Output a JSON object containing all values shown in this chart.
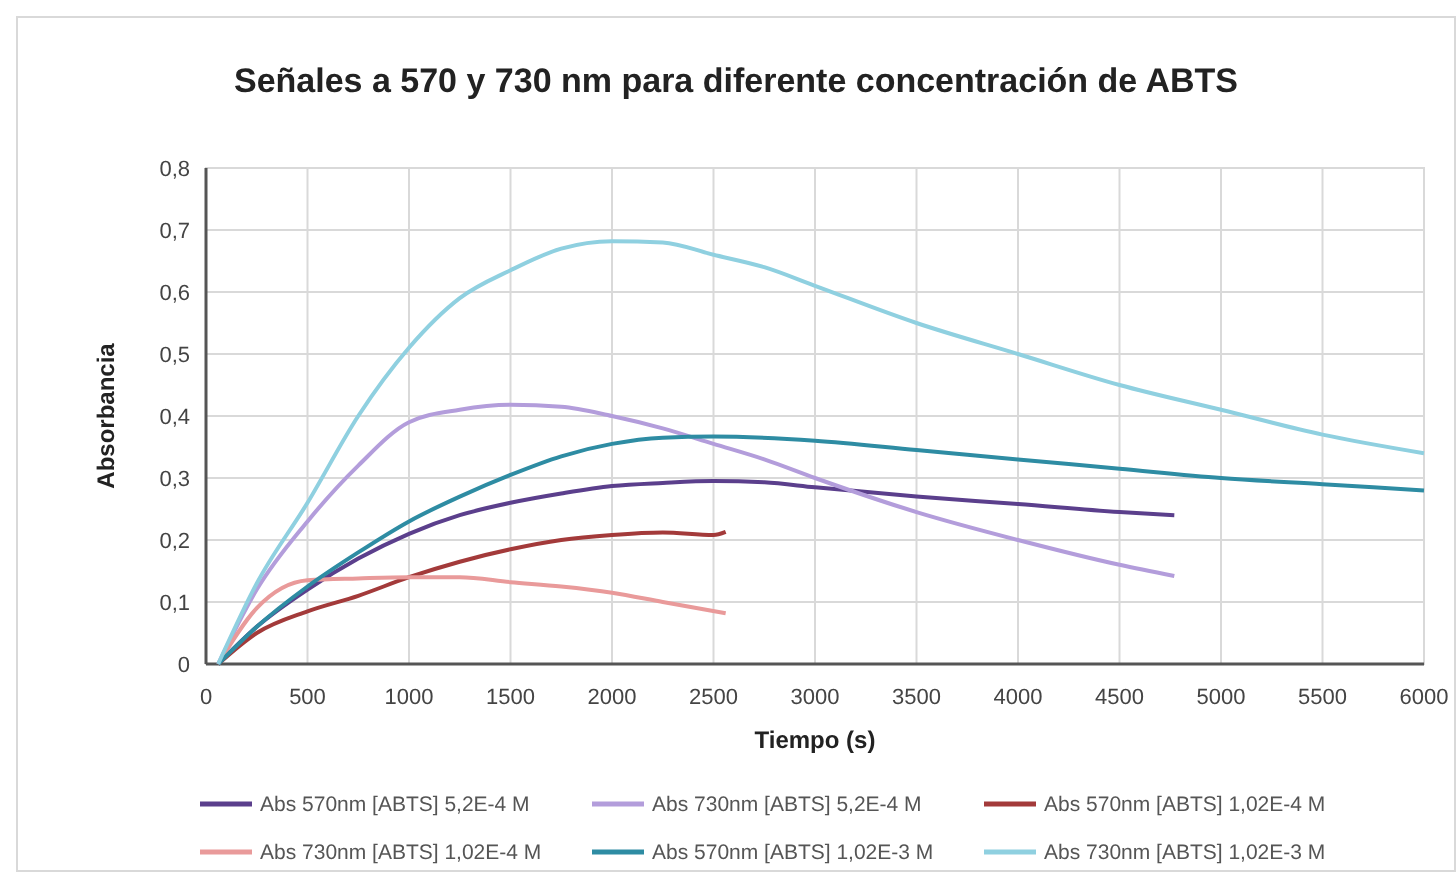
{
  "chart_data": {
    "type": "line",
    "title": "Señales  a 570 y 730 nm para diferente concentración de ABTS",
    "xlabel": "Tiempo (s)",
    "ylabel": "Absorbancia",
    "xlim": [
      0,
      6000
    ],
    "xticks": [
      0,
      500,
      1000,
      1500,
      2000,
      2500,
      3000,
      3500,
      4000,
      4500,
      5000,
      5500,
      6000
    ],
    "ylim": [
      0,
      0.8
    ],
    "yticks": [
      {
        "value": 0,
        "label": "0"
      },
      {
        "value": 0.1,
        "label": "0,1"
      },
      {
        "value": 0.2,
        "label": "0,2"
      },
      {
        "value": 0.3,
        "label": "0,3"
      },
      {
        "value": 0.4,
        "label": "0,4"
      },
      {
        "value": 0.5,
        "label": "0,5"
      },
      {
        "value": 0.6,
        "label": "0,6"
      },
      {
        "value": 0.7,
        "label": "0,7"
      },
      {
        "value": 0.8,
        "label": "0,8"
      }
    ],
    "grid": true,
    "legend": "bottom",
    "marker": "none",
    "line_style": "solid",
    "series": [
      {
        "name": "Abs 570nm [ABTS] 5,2E-4 M",
        "color": "#5b3f8c",
        "x": [
          60,
          250,
          500,
          750,
          1000,
          1250,
          1500,
          1750,
          2000,
          2250,
          2500,
          2750,
          3000,
          3500,
          4000,
          4500,
          4770
        ],
        "values": [
          0,
          0.06,
          0.12,
          0.17,
          0.21,
          0.24,
          0.26,
          0.275,
          0.287,
          0.292,
          0.295,
          0.293,
          0.285,
          0.27,
          0.258,
          0.245,
          0.24
        ]
      },
      {
        "name": "Abs 730nm [ABTS] 5,2E-4 M",
        "color": "#b39ddb",
        "x": [
          60,
          250,
          500,
          750,
          1000,
          1250,
          1500,
          1750,
          2000,
          2250,
          2500,
          2750,
          3000,
          3500,
          4000,
          4500,
          4770
        ],
        "values": [
          0,
          0.12,
          0.23,
          0.32,
          0.39,
          0.41,
          0.418,
          0.415,
          0.4,
          0.38,
          0.355,
          0.33,
          0.3,
          0.245,
          0.2,
          0.16,
          0.142
        ]
      },
      {
        "name": "Abs 570nm [ABTS] 1,02E-4 M",
        "color": "#a33a3a",
        "x": [
          60,
          250,
          500,
          750,
          1000,
          1250,
          1500,
          1750,
          2000,
          2250,
          2500,
          2560
        ],
        "values": [
          0,
          0.05,
          0.085,
          0.11,
          0.14,
          0.165,
          0.185,
          0.2,
          0.208,
          0.212,
          0.208,
          0.213
        ]
      },
      {
        "name": "Abs 730nm [ABTS] 1,02E-4 M",
        "color": "#e99a9a",
        "x": [
          60,
          250,
          500,
          750,
          1000,
          1250,
          1500,
          1750,
          2000,
          2250,
          2560
        ],
        "values": [
          0,
          0.09,
          0.135,
          0.138,
          0.14,
          0.14,
          0.132,
          0.125,
          0.115,
          0.1,
          0.082
        ]
      },
      {
        "name": "Abs 570nm [ABTS] 1,02E-3 M",
        "color": "#2e8ca3",
        "x": [
          60,
          250,
          500,
          750,
          1000,
          1250,
          1500,
          1750,
          2000,
          2250,
          2500,
          3000,
          3500,
          4000,
          4500,
          5000,
          5500,
          6000
        ],
        "values": [
          0,
          0.06,
          0.125,
          0.18,
          0.23,
          0.27,
          0.305,
          0.335,
          0.355,
          0.365,
          0.367,
          0.36,
          0.345,
          0.33,
          0.315,
          0.3,
          0.29,
          0.28
        ]
      },
      {
        "name": "Abs 730nm [ABTS] 1,02E-3 M",
        "color": "#8fd0e0",
        "x": [
          60,
          250,
          500,
          750,
          1000,
          1250,
          1500,
          1750,
          2000,
          2250,
          2500,
          2750,
          3000,
          3500,
          4000,
          4500,
          5000,
          5500,
          6000
        ],
        "values": [
          0,
          0.13,
          0.26,
          0.4,
          0.51,
          0.59,
          0.635,
          0.67,
          0.682,
          0.68,
          0.66,
          0.64,
          0.61,
          0.55,
          0.5,
          0.45,
          0.41,
          0.37,
          0.34
        ]
      }
    ]
  }
}
